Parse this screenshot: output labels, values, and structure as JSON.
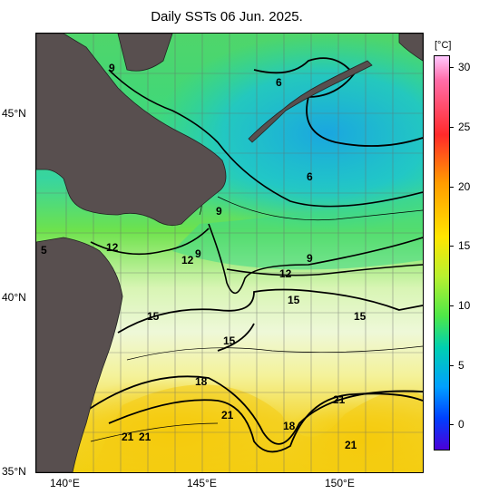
{
  "title": "Daily SSTs 06 Jun. 2025.",
  "axes": {
    "lat_labels": [
      "45°N",
      "40°N",
      "35°N"
    ],
    "lon_labels": [
      "140°E",
      "145°E",
      "150°E"
    ]
  },
  "colorbar": {
    "unit": "[°C]",
    "ticks": [
      "30",
      "25",
      "20",
      "15",
      "10",
      "5",
      "0"
    ],
    "colors": [
      "#ffc8ff",
      "#ff2a2a",
      "#ff9a00",
      "#ffe600",
      "#7cf03c",
      "#00c8a8",
      "#00a0ff",
      "#0000ff",
      "#4b00d8"
    ]
  },
  "contour_labels": [
    "9",
    "6",
    "6",
    "9",
    "5",
    "12",
    "12",
    "9",
    "9",
    "12",
    "15",
    "15",
    "15",
    "15",
    "18",
    "21",
    "21",
    "18",
    "21",
    "21",
    "21"
  ],
  "colors": {
    "land": "#584f4f",
    "warm_sst": "#f6d400",
    "cold_sst": "#1aa6e0"
  }
}
